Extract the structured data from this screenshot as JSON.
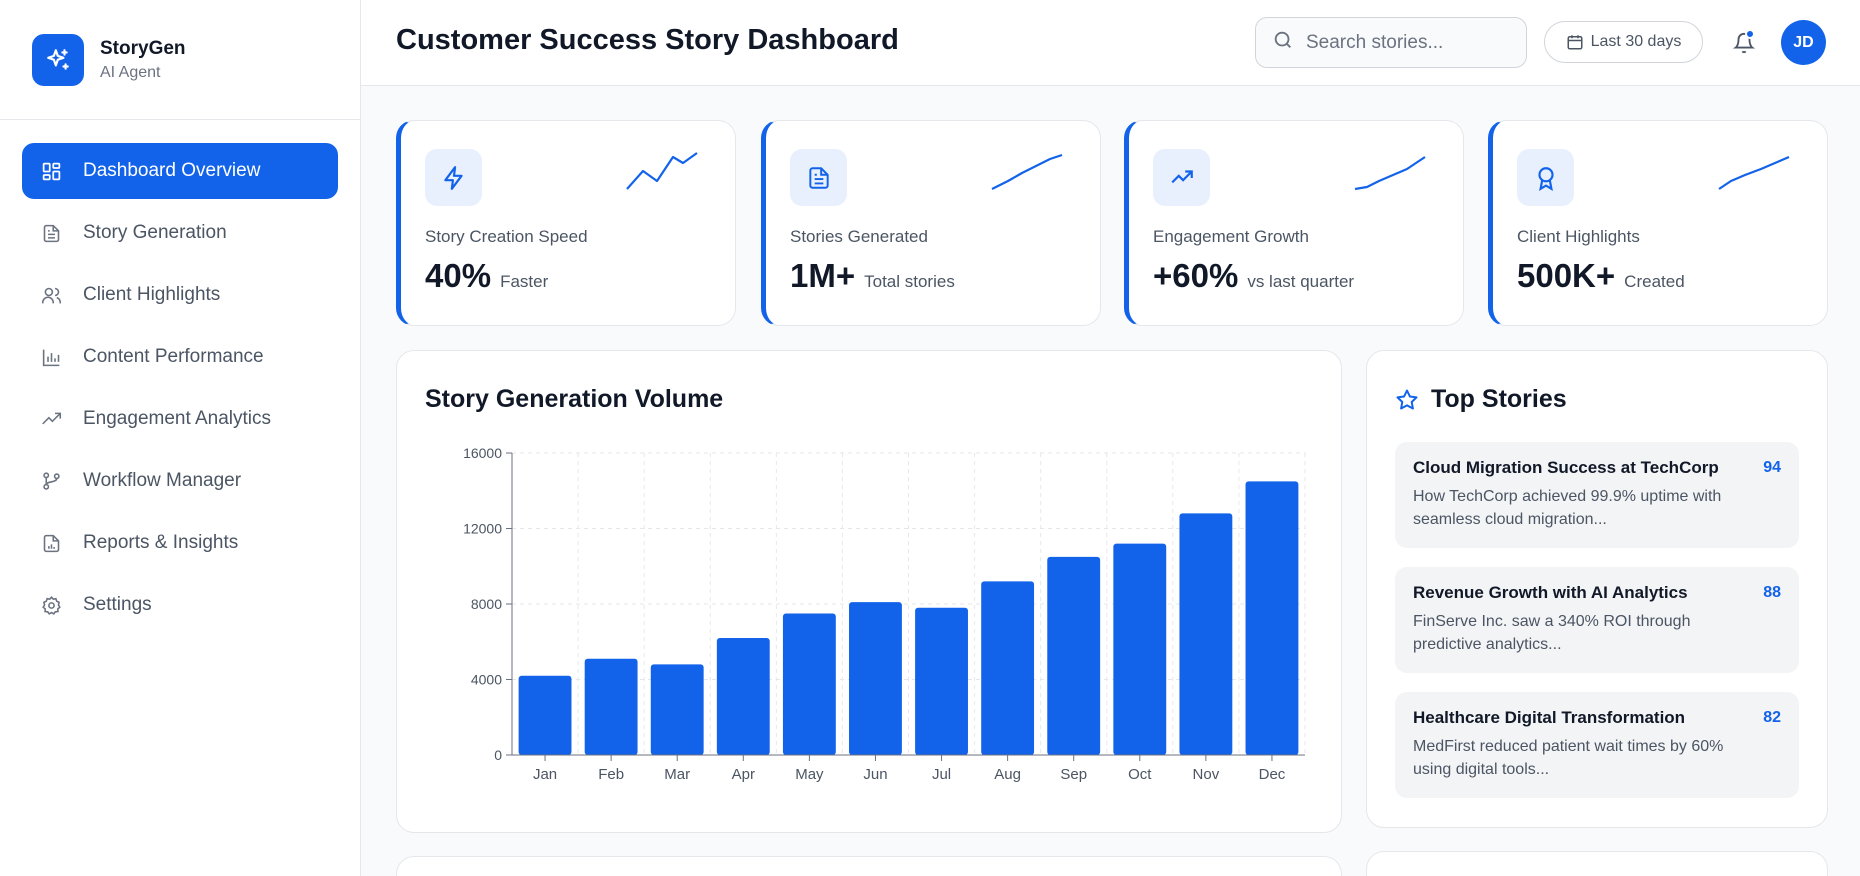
{
  "brand": {
    "name": "StoryGen",
    "subtitle": "AI Agent",
    "icon": "sparkles-icon"
  },
  "sidebar": {
    "items": [
      {
        "label": "Dashboard Overview",
        "icon": "dashboard-grid-icon",
        "active": true
      },
      {
        "label": "Story Generation",
        "icon": "document-icon"
      },
      {
        "label": "Client Highlights",
        "icon": "users-icon"
      },
      {
        "label": "Content Performance",
        "icon": "bar-chart-icon"
      },
      {
        "label": "Engagement Analytics",
        "icon": "trending-up-icon"
      },
      {
        "label": "Workflow Manager",
        "icon": "git-branch-icon"
      },
      {
        "label": "Reports & Insights",
        "icon": "report-icon"
      },
      {
        "label": "Settings",
        "icon": "gear-icon"
      }
    ]
  },
  "header": {
    "title": "Customer Success Story Dashboard",
    "search_placeholder": "Search stories...",
    "date_range": "Last 30 days",
    "avatar_initials": "JD"
  },
  "stats": [
    {
      "label": "Story Creation Speed",
      "value": "40%",
      "unit": "Faster",
      "icon": "lightning-icon"
    },
    {
      "label": "Stories Generated",
      "value": "1M+",
      "unit": "Total stories",
      "icon": "document-icon"
    },
    {
      "label": "Engagement Growth",
      "value": "+60%",
      "unit": "vs last quarter",
      "icon": "trending-up-icon"
    },
    {
      "label": "Client Highlights",
      "value": "500K+",
      "unit": "Created",
      "icon": "award-icon"
    }
  ],
  "chart_title": "Story Generation Volume",
  "chart_data": {
    "type": "bar",
    "categories": [
      "Jan",
      "Feb",
      "Mar",
      "Apr",
      "May",
      "Jun",
      "Jul",
      "Aug",
      "Sep",
      "Oct",
      "Nov",
      "Dec"
    ],
    "values": [
      4200,
      5100,
      4800,
      6200,
      7500,
      8100,
      7800,
      9200,
      10500,
      11200,
      12800,
      14500
    ],
    "ylim": [
      0,
      16000
    ],
    "yticks": [
      0,
      4000,
      8000,
      12000,
      16000
    ],
    "grid": true,
    "color": "#1263ea"
  },
  "top_stories": {
    "title": "Top Stories",
    "items": [
      {
        "title": "Cloud Migration Success at TechCorp",
        "score": "94",
        "description": "How TechCorp achieved 99.9% uptime with seamless cloud migration..."
      },
      {
        "title": "Revenue Growth with AI Analytics",
        "score": "88",
        "description": "FinServe Inc. saw a 340% ROI through predictive analytics..."
      },
      {
        "title": "Healthcare Digital Transformation",
        "score": "82",
        "description": "MedFirst reduced patient wait times by 60% using digital tools..."
      }
    ]
  },
  "colors": {
    "accent": "#1263ea",
    "accent_light": "#e8f0fe"
  }
}
